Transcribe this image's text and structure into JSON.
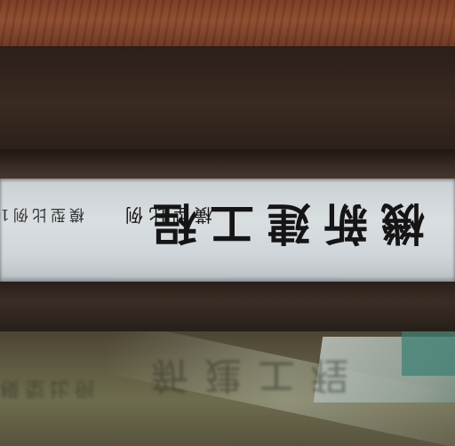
{
  "photo": {
    "plaque": {
      "main_text": "機新建工程",
      "paren_char": "",
      "small_caption": "模型比例1",
      "ornament": "橫型比例"
    },
    "reflection": {
      "ghost_main": "新建工程",
      "ghost_small": "模型比例"
    },
    "colors": {
      "wood": "#7a3a22",
      "frame": "#2b1f18",
      "plaque": "#d9dee1",
      "text": "#151515"
    }
  }
}
